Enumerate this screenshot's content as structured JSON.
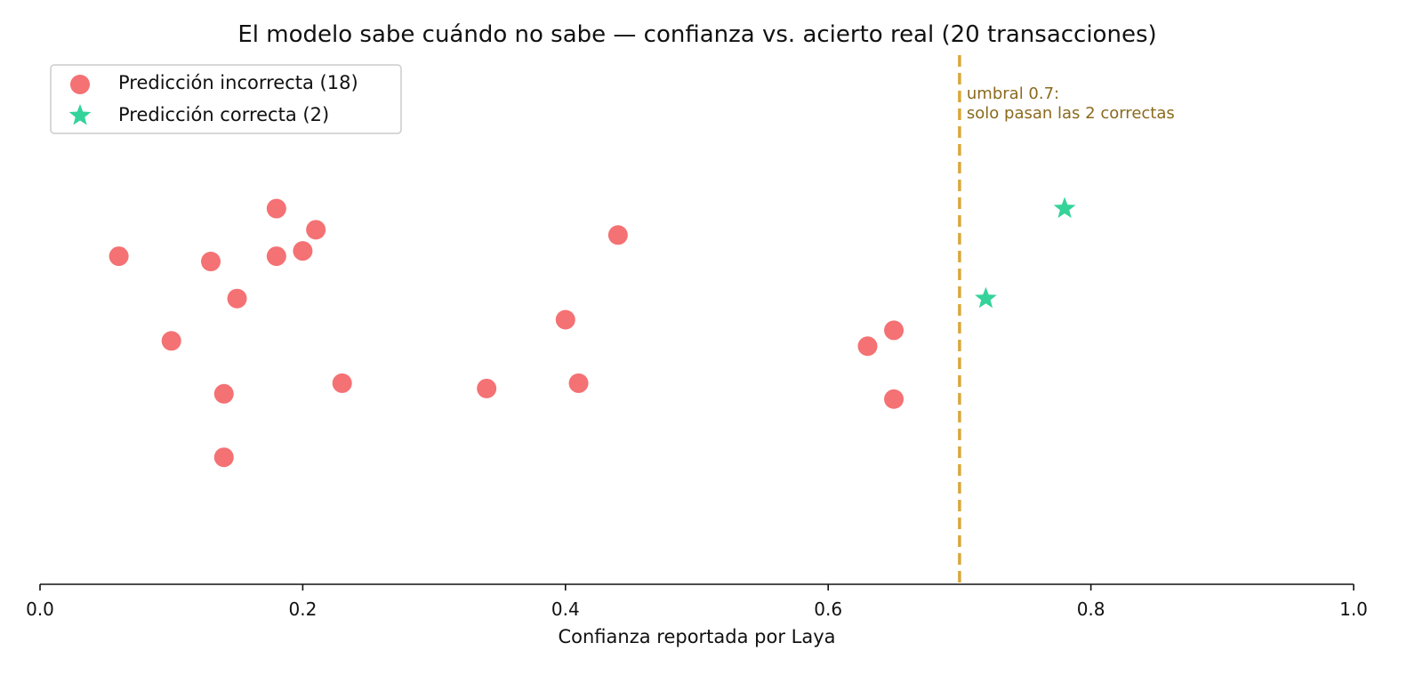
{
  "chart_data": {
    "type": "scatter",
    "title": "El modelo sabe cuándo no sabe — confianza vs. acierto real (20 transacciones)",
    "xlabel": "Confianza reportada por Laya",
    "ylabel": "",
    "xlim": [
      0.0,
      1.0
    ],
    "xticks": [
      "0.0",
      "0.2",
      "0.4",
      "0.6",
      "0.8",
      "1.0"
    ],
    "xtick_values": [
      0.0,
      0.2,
      0.4,
      0.6,
      0.8,
      1.0
    ],
    "ylim": [
      0.0,
      1.0
    ],
    "grid": false,
    "legend_placement": "top-left",
    "series": [
      {
        "name": "Predicción incorrecta (18)",
        "marker": "circle",
        "color": "#f47174",
        "points": [
          {
            "x": 0.06,
            "y": 0.62
          },
          {
            "x": 0.1,
            "y": 0.46
          },
          {
            "x": 0.13,
            "y": 0.61
          },
          {
            "x": 0.14,
            "y": 0.36
          },
          {
            "x": 0.14,
            "y": 0.24
          },
          {
            "x": 0.15,
            "y": 0.54
          },
          {
            "x": 0.18,
            "y": 0.71
          },
          {
            "x": 0.18,
            "y": 0.62
          },
          {
            "x": 0.2,
            "y": 0.63
          },
          {
            "x": 0.21,
            "y": 0.67
          },
          {
            "x": 0.23,
            "y": 0.38
          },
          {
            "x": 0.34,
            "y": 0.37
          },
          {
            "x": 0.4,
            "y": 0.5
          },
          {
            "x": 0.41,
            "y": 0.38
          },
          {
            "x": 0.44,
            "y": 0.66
          },
          {
            "x": 0.63,
            "y": 0.45
          },
          {
            "x": 0.65,
            "y": 0.48
          },
          {
            "x": 0.65,
            "y": 0.35
          }
        ]
      },
      {
        "name": "Predicción correcta (2)",
        "marker": "star",
        "color": "#34d399",
        "points": [
          {
            "x": 0.72,
            "y": 0.54
          },
          {
            "x": 0.78,
            "y": 0.71
          }
        ]
      }
    ],
    "threshold": {
      "x": 0.7,
      "color": "#d9a83a",
      "label_lines": [
        "umbral 0.7:",
        "solo pasan las 2 correctas"
      ],
      "label_color": "#8a6a1c"
    }
  }
}
